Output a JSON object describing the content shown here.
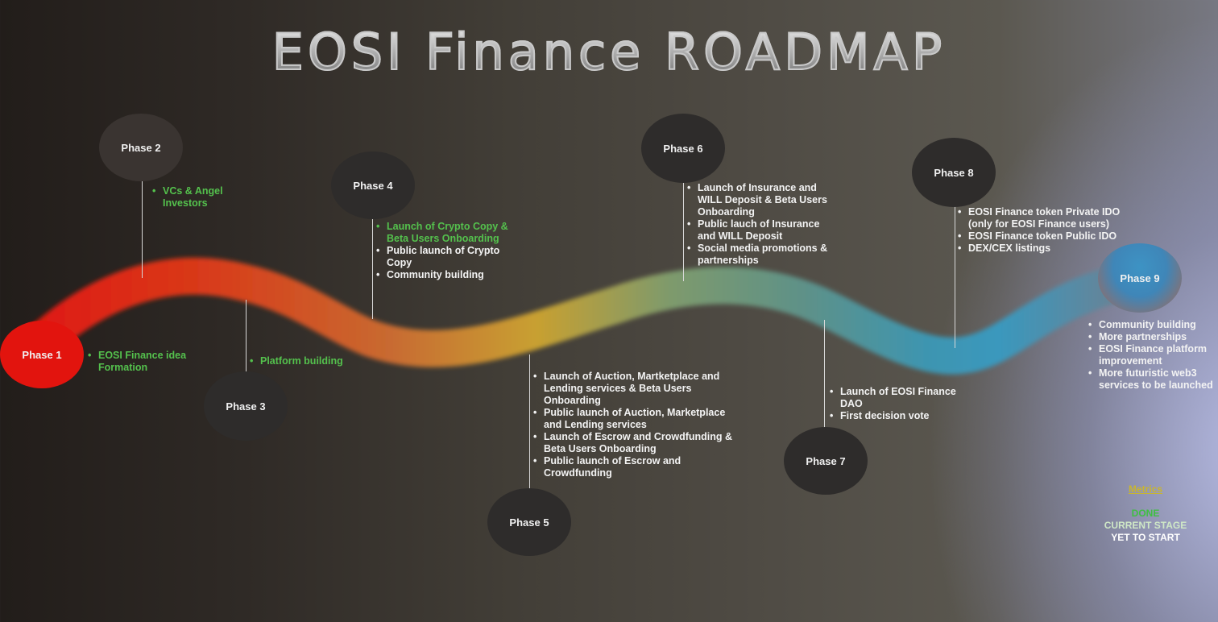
{
  "title": "EOSI Finance ROADMAP",
  "phases": {
    "p1": {
      "label": "Phase 1",
      "items": [
        "EOSI Finance idea Formation"
      ]
    },
    "p2": {
      "label": "Phase 2",
      "items": [
        "VCs & Angel Investors"
      ]
    },
    "p3": {
      "label": "Phase 3",
      "items": [
        "Platform building"
      ]
    },
    "p4": {
      "label": "Phase 4",
      "items": [
        "Launch of Crypto Copy & Beta Users Onboarding",
        "Public launch of Crypto Copy",
        "Community building"
      ]
    },
    "p5": {
      "label": "Phase 5",
      "items": [
        "Launch of Auction, Martketplace and Lending services & Beta Users Onboarding",
        "Public launch of Auction, Marketplace and Lending services",
        "Launch of Escrow and Crowdfunding & Beta Users Onboarding",
        "Public launch of Escrow and Crowdfunding"
      ]
    },
    "p6": {
      "label": "Phase 6",
      "items": [
        "Launch of Insurance and WILL Deposit & Beta Users Onboarding",
        "Public lauch of Insurance and WILL Deposit",
        "Social media promotions & partnerships"
      ]
    },
    "p7": {
      "label": "Phase 7",
      "items": [
        "Launch of EOSI Finance DAO",
        "First decision vote"
      ]
    },
    "p8": {
      "label": "Phase 8",
      "items": [
        "EOSI Finance token Private IDO (only for EOSI Finance users)",
        "EOSI Finance token Public IDO",
        "DEX/CEX listings"
      ]
    },
    "p9": {
      "label": "Phase 9",
      "items": [
        "Community building",
        "More partnerships",
        "EOSI Finance platform improvement",
        "More futuristic web3 services to be launched"
      ]
    }
  },
  "legend": {
    "title": "Metrics",
    "done": "DONE",
    "current": "CURRENT STAGE",
    "yet": "YET TO START"
  },
  "colors": {
    "done": "#54c14d",
    "pending": "#f3f3f3",
    "phase1": "#e2140e",
    "node": "#2e2c2b",
    "road_start": "#e0130f",
    "road_mid": "#c8a030",
    "road_end": "#3a98bd"
  }
}
